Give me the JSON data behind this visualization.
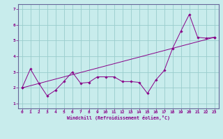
{
  "xlabel": "Windchill (Refroidissement éolien,°C)",
  "bg_color": "#c8ecec",
  "line_color": "#880088",
  "grid_color": "#99cccc",
  "spine_color": "#666699",
  "xlim": [
    -0.5,
    23.5
  ],
  "ylim": [
    0.7,
    7.3
  ],
  "xticks": [
    0,
    1,
    2,
    3,
    4,
    5,
    6,
    7,
    8,
    9,
    10,
    11,
    12,
    13,
    14,
    15,
    16,
    17,
    18,
    19,
    20,
    21,
    22,
    23
  ],
  "yticks": [
    1,
    2,
    3,
    4,
    5,
    6,
    7
  ],
  "series1_x": [
    0,
    1,
    2,
    3,
    4,
    5,
    6,
    7,
    8,
    9,
    10,
    11,
    12,
    13,
    14,
    15,
    16,
    17,
    18,
    19,
    20,
    21,
    22,
    23
  ],
  "series1_y": [
    2.0,
    3.2,
    2.3,
    1.5,
    1.85,
    2.4,
    3.0,
    2.3,
    2.35,
    2.7,
    2.7,
    2.7,
    2.4,
    2.4,
    2.35,
    1.65,
    2.5,
    3.1,
    4.5,
    5.6,
    6.65,
    5.2,
    5.15,
    5.2
  ],
  "series2_x": [
    0,
    23
  ],
  "series2_y": [
    2.0,
    5.2
  ]
}
